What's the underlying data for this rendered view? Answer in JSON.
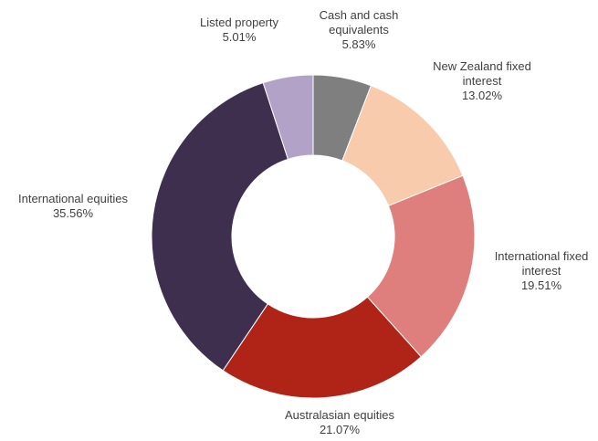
{
  "chart_data": {
    "type": "pie",
    "donut": true,
    "slices": [
      {
        "name": "Cash and cash equivalents",
        "label_lines": [
          "Cash and cash",
          "equivalents"
        ],
        "value_label": "5.83%",
        "value": 5.83,
        "color": "#7f7f7f"
      },
      {
        "name": "New Zealand fixed interest",
        "label_lines": [
          "New Zealand fixed",
          "interest"
        ],
        "value_label": "13.02%",
        "value": 13.02,
        "color": "#f8cbad"
      },
      {
        "name": "International fixed interest",
        "label_lines": [
          "International fixed",
          "interest"
        ],
        "value_label": "19.51%",
        "value": 19.51,
        "color": "#de7f7d"
      },
      {
        "name": "Australasian equities",
        "label_lines": [
          "Australasian equities"
        ],
        "value_label": "21.07%",
        "value": 21.07,
        "color": "#b02418"
      },
      {
        "name": "International equities",
        "label_lines": [
          "International equities"
        ],
        "value_label": "35.56%",
        "value": 35.56,
        "color": "#3f2f4f"
      },
      {
        "name": "Listed property",
        "label_lines": [
          "Listed property"
        ],
        "value_label": "5.01%",
        "value": 5.01,
        "color": "#b3a2c7"
      }
    ],
    "legend": "none"
  }
}
